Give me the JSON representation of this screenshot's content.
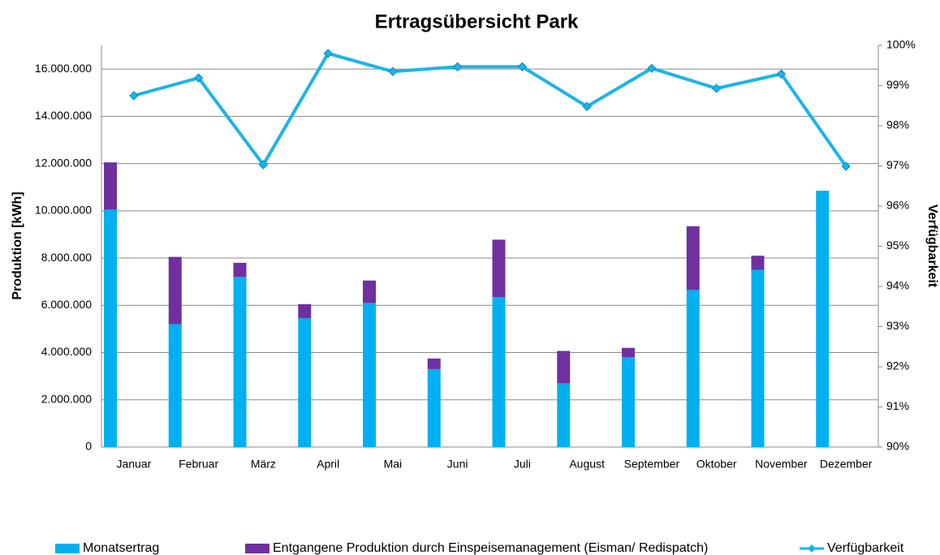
{
  "chart_data": {
    "type": "bar",
    "stacked": true,
    "title": "Ertragsübersicht Park",
    "y_label": "Produktion [kWh]",
    "y2_label": "Verfügbarkeit",
    "categories": [
      "Januar",
      "Februar",
      "März",
      "April",
      "Mai",
      "Juni",
      "Juli",
      "August",
      "September",
      "Oktober",
      "November",
      "Dezember"
    ],
    "series": [
      {
        "name": "Monatsertrag",
        "type": "bar",
        "color": "#00b0f0",
        "values": [
          10050000,
          5200000,
          7200000,
          5450000,
          6100000,
          3300000,
          6350000,
          2700000,
          3800000,
          6650000,
          7500000,
          10850000
        ]
      },
      {
        "name": "Entgangene Produktion durch Einspeisemanagement (Eisman/ Redispatch)",
        "type": "bar",
        "color": "#7030a0",
        "values": [
          2000000,
          2850000,
          600000,
          600000,
          950000,
          450000,
          2430000,
          1370000,
          400000,
          2700000,
          600000,
          0
        ]
      },
      {
        "name": "Verfügbarkeit",
        "type": "line",
        "axis": "y2",
        "color": "#1cb4e8",
        "values": [
          98.75,
          99.19,
          97.03,
          99.8,
          99.35,
          99.47,
          99.47,
          98.48,
          99.43,
          98.93,
          99.29,
          96.99
        ]
      }
    ],
    "ylim": [
      0,
      17000000
    ],
    "yticks": [
      0,
      {
        "value": 2000000,
        "label": "2.000.000"
      },
      {
        "value": 4000000,
        "label": "4.000.000"
      },
      {
        "value": 6000000,
        "label": "6.000.000"
      },
      {
        "value": 8000000,
        "label": "8.000.000"
      },
      {
        "value": 10000000,
        "label": "10.000.000"
      },
      {
        "value": 12000000,
        "label": "12.000.000"
      },
      {
        "value": 14000000,
        "label": "14.000.000"
      },
      {
        "value": 16000000,
        "label": "16.000.000"
      }
    ],
    "y2lim": [
      90,
      100
    ],
    "y2ticks": [
      {
        "value": 90,
        "label": "90%"
      },
      {
        "value": 91,
        "label": "91%"
      },
      {
        "value": 92,
        "label": "92%"
      },
      {
        "value": 93,
        "label": "93%"
      },
      {
        "value": 94,
        "label": "94%"
      },
      {
        "value": 95,
        "label": "95%"
      },
      {
        "value": 96,
        "label": "96%"
      },
      {
        "value": 97,
        "label": "97%"
      },
      {
        "value": 98,
        "label": "98%"
      },
      {
        "value": 99,
        "label": "99%"
      },
      {
        "value": 100,
        "label": "100%"
      }
    ],
    "grid": true,
    "legend": "bottom"
  }
}
